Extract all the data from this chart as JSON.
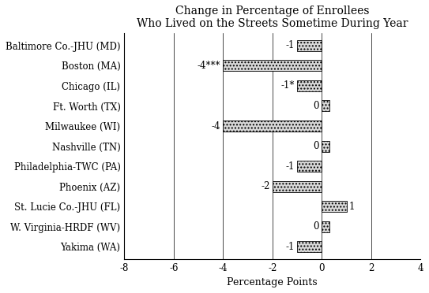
{
  "title_line1": "Change in Percentage of Enrollees",
  "title_line2": "Who Lived on the Streets Sometime During Year",
  "xlabel": "Percentage Points",
  "categories": [
    "Baltimore Co.-JHU (MD)",
    "Boston (MA)",
    "Chicago (IL)",
    "Ft. Worth (TX)",
    "Milwaukee (WI)",
    "Nashville (TN)",
    "Philadelphia-TWC (PA)",
    "Phoenix (AZ)",
    "St. Lucie Co.-JHU (FL)",
    "W. Virginia-HRDF (WV)",
    "Yakima (WA)"
  ],
  "values": [
    -1,
    -4,
    -1,
    0,
    -4,
    0,
    -1,
    -2,
    1,
    0,
    -1
  ],
  "bar_values": [
    -1,
    -4,
    -1,
    0.3,
    -4,
    0.3,
    -1,
    -2,
    1,
    0.3,
    -1
  ],
  "labels": [
    "-1",
    "-4***",
    "-1*",
    "0",
    "-4",
    "0",
    "-1",
    "-2",
    "1",
    "0",
    "-1"
  ],
  "label_positions": [
    "left",
    "left",
    "left",
    "left_of_bar",
    "left",
    "left_of_bar",
    "left",
    "left",
    "right",
    "left_of_bar",
    "left"
  ],
  "xlim": [
    -8,
    4
  ],
  "xticks": [
    -8,
    -6,
    -4,
    -2,
    0,
    2,
    4
  ],
  "bar_color": "#d8d8d8",
  "bar_hatch": "....",
  "bar_edgecolor": "#000000",
  "background_color": "#ffffff",
  "title_fontsize": 10,
  "label_fontsize": 8.5,
  "tick_fontsize": 8.5,
  "xlabel_fontsize": 9,
  "bar_height": 0.55
}
